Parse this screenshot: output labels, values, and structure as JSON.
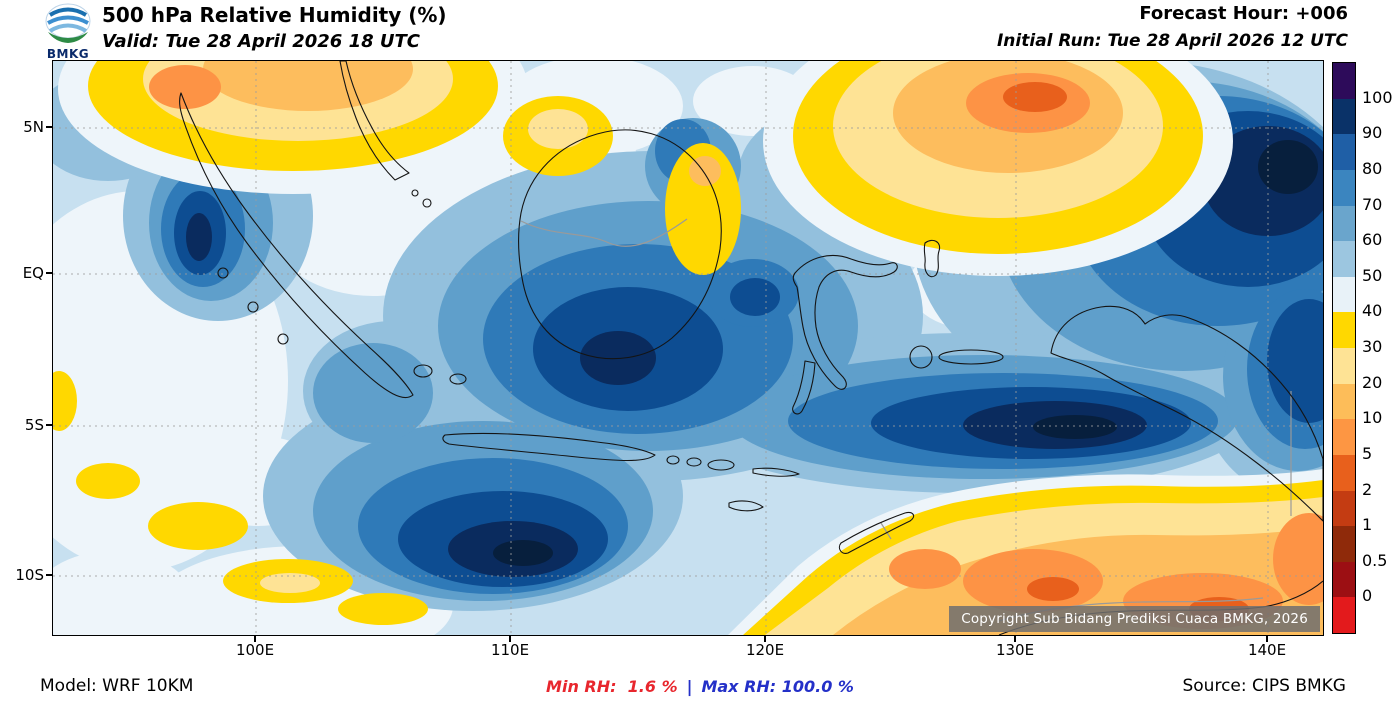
{
  "header": {
    "logo_text": "BMKG",
    "title": "500 hPa Relative Humidity (%)",
    "valid_time": "Valid: Tue 28 April 2026 18 UTC",
    "forecast_hour": "Forecast Hour: +006",
    "initial_run": "Initial Run: Tue 28 April 2026 12 UTC"
  },
  "map": {
    "y_axis_labels": [
      "5N",
      "EQ",
      "5S",
      "10S"
    ],
    "x_axis_labels": [
      "100E",
      "110E",
      "120E",
      "130E",
      "140E"
    ],
    "copyright": "Copyright Sub Bidang Prediksi Cuaca BMKG, 2026"
  },
  "colorbar": {
    "tick_labels": [
      "100",
      "90",
      "80",
      "70",
      "60",
      "50",
      "40",
      "30",
      "20",
      "10",
      "5",
      "2",
      "1",
      "0.5",
      "0"
    ],
    "segment_colors_top_to_bottom": [
      "#2d0b5a",
      "#0a3268",
      "#1f5fa6",
      "#3b85bf",
      "#6aa5cc",
      "#9cc6e0",
      "#e8f2f8",
      "#ffd800",
      "#fee395",
      "#fdbd59",
      "#fd9643",
      "#e8601c",
      "#c43c12",
      "#8f2a0a",
      "#9c0f13",
      "#e31a1c"
    ]
  },
  "footer": {
    "model": "Model: WRF 10KM",
    "min_rh": "Min RH:  1.6 %",
    "separator": "|",
    "max_rh": "Max RH: 100.0 %",
    "source": "Source: CIPS BMKG"
  },
  "chart_data": {
    "type": "heatmap",
    "title": "500 hPa Relative Humidity (%)",
    "units": "%",
    "valid": "Tue 28 April 2026 18 UTC",
    "initial_run": "Tue 28 April 2026 12 UTC",
    "forecast_hour": "+006",
    "model": "WRF 10KM",
    "source": "CIPS BMKG",
    "colorbar_levels": [
      100,
      90,
      80,
      70,
      60,
      50,
      40,
      30,
      20,
      10,
      5,
      2,
      1,
      0.5,
      0
    ],
    "lat_ticks": [
      "5N",
      "EQ",
      "5S",
      "10S"
    ],
    "lon_ticks": [
      "100E",
      "110E",
      "120E",
      "130E",
      "140E"
    ],
    "min_rh_percent": 1.6,
    "max_rh_percent": 100.0,
    "legend_position": "right",
    "grid": "dotted"
  }
}
